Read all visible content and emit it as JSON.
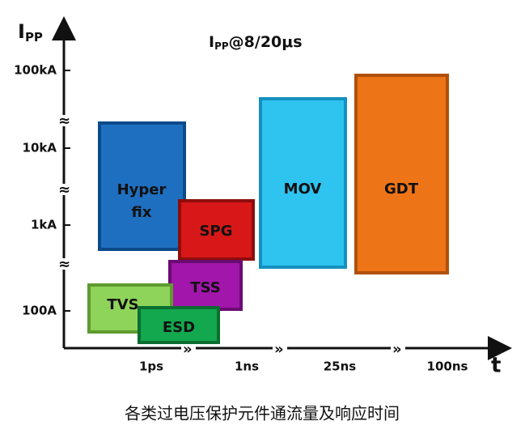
{
  "y_axis_label": {
    "main": "I",
    "sub": "PP"
  },
  "x_axis_label": "t",
  "title": {
    "main": "I",
    "sub": "PP",
    "rest": "@8/20μs"
  },
  "y_labels": [
    "100kA",
    "10kA",
    "1kA",
    "100A"
  ],
  "x_labels": [
    "1ps",
    "1ns",
    "25ns",
    "100ns"
  ],
  "nodes": [
    {
      "label": [
        "Hyper",
        "fix"
      ]
    },
    {
      "label": [
        "SPG"
      ]
    },
    {
      "label": [
        "MOV"
      ]
    },
    {
      "label": [
        "GDT"
      ]
    },
    {
      "label": [
        "TSS"
      ]
    },
    {
      "label": [
        "TVS"
      ]
    },
    {
      "label": [
        "ESD"
      ]
    }
  ],
  "caption": "各类过电压保护元件通流量及响应时间"
}
